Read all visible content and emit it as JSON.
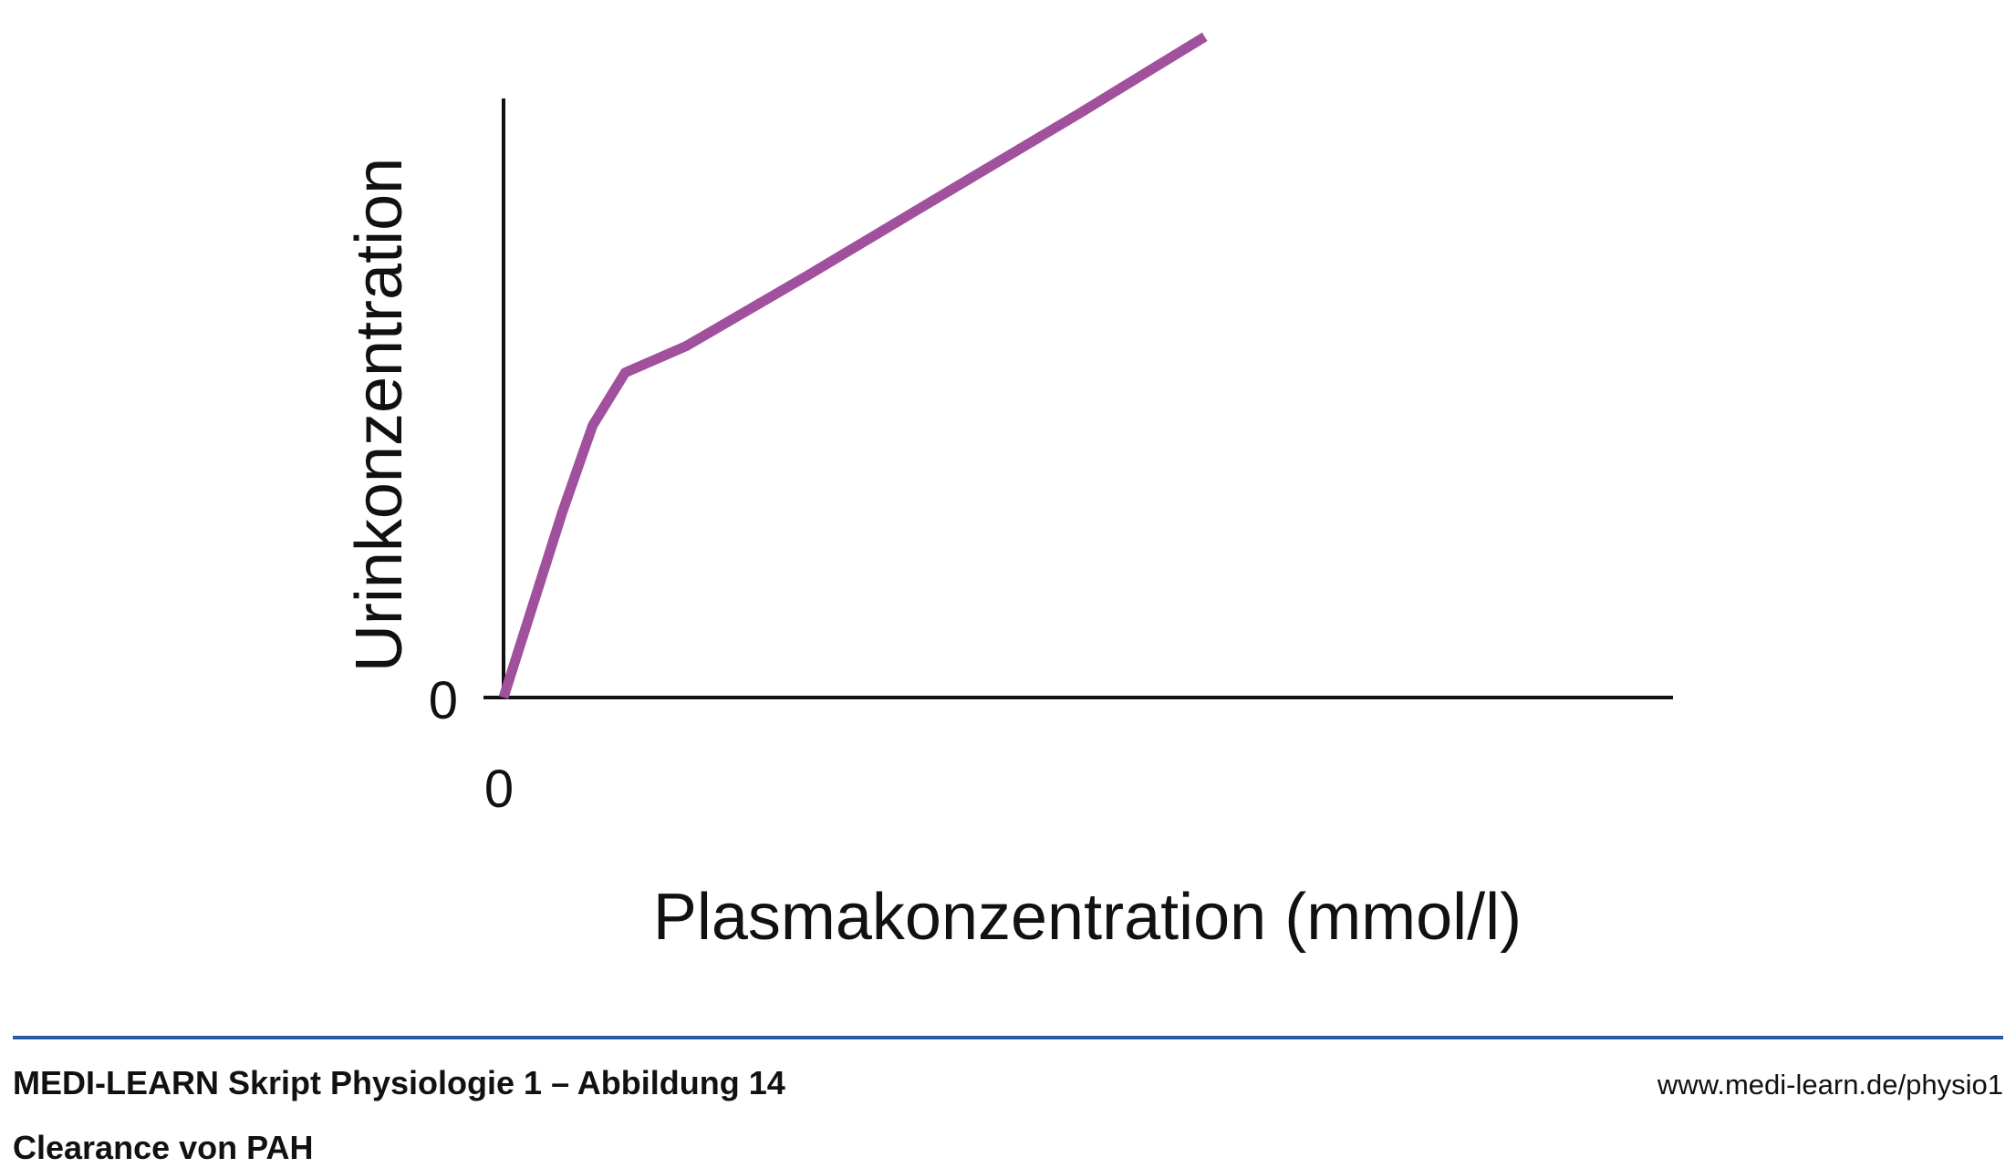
{
  "chart_data": {
    "type": "line",
    "xlabel": "Plasmakonzentration (mmol/l)",
    "ylabel": "Urinkonzentration",
    "x_tick_labels": [
      "0"
    ],
    "y_tick_labels": [
      "0"
    ],
    "xlim": [
      0,
      10
    ],
    "ylim": [
      0,
      10
    ],
    "grid": false,
    "series": [
      {
        "color": "#a0509c",
        "x": [
          0,
          0.71,
          1.07,
          1.46,
          2.19,
          3.63,
          5.3,
          6.9,
          8.42
        ],
        "y": [
          0,
          2.89,
          4.22,
          5.04,
          5.45,
          6.53,
          7.82,
          9.05,
          10.25
        ]
      }
    ]
  },
  "footer": {
    "title": "MEDI-LEARN Skript Physiologie 1 – Abbildung 14",
    "caption": "Clearance von PAH",
    "url": "www.medi-learn.de/physio1"
  }
}
